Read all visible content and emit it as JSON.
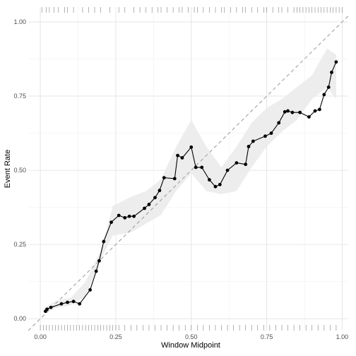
{
  "chart_data": {
    "type": "line",
    "xlabel": "Window Midpoint",
    "ylabel": "Event Rate",
    "xlim": [
      -0.04,
      1.02
    ],
    "ylim": [
      -0.04,
      1.05
    ],
    "x_ticks": [
      0.0,
      0.25,
      0.5,
      0.75,
      1.0
    ],
    "x_tick_labels": [
      "0.00",
      "0.25",
      "0.50",
      "0.75",
      "1.00"
    ],
    "y_ticks": [
      0.0,
      0.25,
      0.5,
      0.75,
      1.0
    ],
    "y_tick_labels": [
      "0.00",
      "0.25",
      "0.50",
      "0.75",
      "1.00"
    ],
    "grid": true,
    "reference_line": {
      "from": [
        -0.04,
        -0.04
      ],
      "to": [
        1.02,
        1.02
      ],
      "style": "dashed"
    },
    "series": [
      {
        "x": [
          0.017,
          0.022,
          0.035,
          0.07,
          0.09,
          0.11,
          0.13,
          0.165,
          0.185,
          0.195,
          0.21,
          0.235,
          0.26,
          0.28,
          0.295,
          0.31,
          0.345,
          0.36,
          0.38,
          0.395,
          0.41,
          0.445,
          0.455,
          0.47,
          0.5,
          0.515,
          0.535,
          0.56,
          0.58,
          0.595,
          0.62,
          0.65,
          0.68,
          0.69,
          0.705,
          0.745,
          0.765,
          0.79,
          0.81,
          0.82,
          0.835,
          0.86,
          0.89,
          0.91,
          0.925,
          0.94,
          0.955,
          0.965,
          0.98
        ],
        "y": [
          0.025,
          0.032,
          0.038,
          0.05,
          0.055,
          0.058,
          0.05,
          0.097,
          0.16,
          0.195,
          0.26,
          0.325,
          0.348,
          0.34,
          0.345,
          0.345,
          0.372,
          0.385,
          0.408,
          0.432,
          0.475,
          0.472,
          0.55,
          0.542,
          0.578,
          0.51,
          0.51,
          0.468,
          0.445,
          0.452,
          0.5,
          0.525,
          0.52,
          0.58,
          0.598,
          0.615,
          0.625,
          0.66,
          0.697,
          0.7,
          0.695,
          0.695,
          0.68,
          0.7,
          0.705,
          0.755,
          0.78,
          0.83,
          0.865
        ]
      }
    ],
    "band": {
      "x": [
        0.02,
        0.05,
        0.1,
        0.15,
        0.2,
        0.24,
        0.3,
        0.35,
        0.4,
        0.45,
        0.5,
        0.55,
        0.6,
        0.65,
        0.7,
        0.75,
        0.8,
        0.85,
        0.9,
        0.95,
        0.98
      ],
      "lower": [
        0.02,
        0.035,
        0.045,
        0.075,
        0.2,
        0.28,
        0.29,
        0.32,
        0.35,
        0.43,
        0.49,
        0.43,
        0.42,
        0.43,
        0.51,
        0.58,
        0.63,
        0.67,
        0.74,
        0.78,
        0.74
      ],
      "upper": [
        0.04,
        0.06,
        0.07,
        0.125,
        0.23,
        0.38,
        0.41,
        0.43,
        0.47,
        0.58,
        0.67,
        0.58,
        0.51,
        0.58,
        0.66,
        0.71,
        0.74,
        0.78,
        0.82,
        0.91,
        0.89
      ]
    },
    "rug_top": [
      0.005,
      0.02,
      0.03,
      0.045,
      0.06,
      0.08,
      0.09,
      0.11,
      0.14,
      0.16,
      0.18,
      0.2,
      0.23,
      0.26,
      0.28,
      0.31,
      0.33,
      0.35,
      0.37,
      0.39,
      0.4,
      0.42,
      0.44,
      0.46,
      0.47,
      0.49,
      0.51,
      0.52,
      0.54,
      0.56,
      0.58,
      0.6,
      0.61,
      0.63,
      0.65,
      0.67,
      0.68,
      0.7,
      0.72,
      0.74,
      0.75,
      0.77,
      0.79,
      0.8,
      0.82,
      0.84,
      0.85,
      0.86,
      0.87,
      0.88,
      0.89,
      0.9,
      0.91,
      0.92,
      0.93,
      0.94,
      0.95,
      0.96,
      0.97,
      0.98,
      0.99,
      1.0
    ],
    "rug_bottom": [
      0.0,
      0.01,
      0.02,
      0.03,
      0.04,
      0.05,
      0.06,
      0.07,
      0.08,
      0.09,
      0.1,
      0.11,
      0.12,
      0.13,
      0.14,
      0.15,
      0.16,
      0.17,
      0.18,
      0.19,
      0.2,
      0.21,
      0.22,
      0.23,
      0.24,
      0.25,
      0.26,
      0.28,
      0.3,
      0.32,
      0.34,
      0.36,
      0.38,
      0.4,
      0.42,
      0.44,
      0.46,
      0.48,
      0.5,
      0.52,
      0.54,
      0.56,
      0.58,
      0.6,
      0.62,
      0.64,
      0.66,
      0.68,
      0.7,
      0.72,
      0.74,
      0.76,
      0.78,
      0.8,
      0.82,
      0.84,
      0.86,
      0.88,
      0.9,
      0.92,
      0.94,
      0.96,
      0.98
    ]
  }
}
